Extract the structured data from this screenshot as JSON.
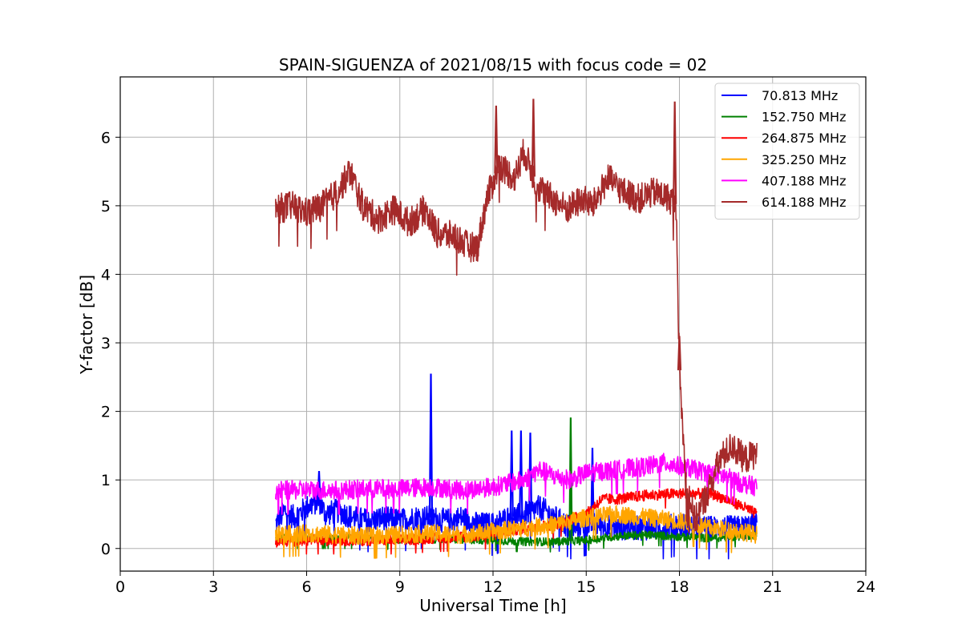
{
  "chart_data": {
    "type": "line",
    "title": "SPAIN-SIGUENZA of 2021/08/15 with focus code = 02",
    "xlabel": "Universal Time [h]",
    "ylabel": "Y-factor [dB]",
    "xlim": [
      0,
      24
    ],
    "ylim": [
      -0.33,
      6.88
    ],
    "xticks": [
      0,
      3,
      6,
      9,
      12,
      15,
      18,
      21,
      24
    ],
    "yticks": [
      0,
      1,
      2,
      3,
      4,
      5,
      6
    ],
    "grid": true,
    "legend_position": "top-right",
    "series": [
      {
        "name": " 70.813 MHz",
        "color": "#0000ff",
        "points": [
          [
            5.0,
            0.35
          ],
          [
            5.3,
            0.55
          ],
          [
            5.6,
            0.45
          ],
          [
            6.0,
            0.6
          ],
          [
            6.4,
            0.7
          ],
          [
            6.6,
            0.5
          ],
          [
            7.0,
            0.55
          ],
          [
            7.5,
            0.45
          ],
          [
            8.0,
            0.4
          ],
          [
            8.5,
            0.45
          ],
          [
            9.0,
            0.4
          ],
          [
            9.5,
            0.45
          ],
          [
            10.0,
            0.45
          ],
          [
            10.5,
            0.4
          ],
          [
            11.0,
            0.45
          ],
          [
            11.5,
            0.35
          ],
          [
            12.0,
            0.35
          ],
          [
            12.5,
            0.45
          ],
          [
            13.0,
            0.5
          ],
          [
            13.5,
            0.6
          ],
          [
            14.0,
            0.45
          ],
          [
            14.5,
            0.3
          ],
          [
            15.0,
            0.35
          ],
          [
            15.5,
            0.35
          ],
          [
            16.0,
            0.3
          ],
          [
            16.5,
            0.3
          ],
          [
            17.0,
            0.3
          ],
          [
            17.5,
            0.3
          ],
          [
            18.0,
            0.35
          ],
          [
            18.5,
            0.3
          ],
          [
            19.0,
            0.3
          ],
          [
            19.5,
            0.3
          ],
          [
            20.0,
            0.3
          ],
          [
            20.5,
            0.35
          ]
        ],
        "spikes": [
          [
            6.4,
            1.13
          ],
          [
            10.0,
            2.55
          ],
          [
            12.6,
            1.72
          ],
          [
            12.9,
            1.72
          ],
          [
            13.2,
            1.69
          ],
          [
            15.2,
            1.47
          ]
        ]
      },
      {
        "name": "152.750 MHz",
        "color": "#008000",
        "points": [
          [
            5.0,
            0.15
          ],
          [
            6.0,
            0.15
          ],
          [
            7.0,
            0.15
          ],
          [
            8.0,
            0.15
          ],
          [
            9.0,
            0.13
          ],
          [
            10.0,
            0.14
          ],
          [
            11.0,
            0.13
          ],
          [
            12.0,
            0.12
          ],
          [
            13.0,
            0.1
          ],
          [
            14.0,
            0.1
          ],
          [
            15.0,
            0.12
          ],
          [
            16.0,
            0.18
          ],
          [
            17.0,
            0.2
          ],
          [
            18.0,
            0.17
          ],
          [
            19.0,
            0.15
          ],
          [
            20.0,
            0.18
          ],
          [
            20.5,
            0.2
          ]
        ],
        "spikes": [
          [
            14.5,
            1.91
          ]
        ]
      },
      {
        "name": "264.875 MHz",
        "color": "#ff0000",
        "points": [
          [
            5.0,
            0.1
          ],
          [
            6.0,
            0.12
          ],
          [
            7.0,
            0.12
          ],
          [
            8.0,
            0.12
          ],
          [
            9.0,
            0.12
          ],
          [
            10.0,
            0.15
          ],
          [
            11.0,
            0.17
          ],
          [
            12.0,
            0.2
          ],
          [
            13.0,
            0.3
          ],
          [
            14.0,
            0.35
          ],
          [
            15.0,
            0.5
          ],
          [
            15.5,
            0.72
          ],
          [
            16.0,
            0.72
          ],
          [
            17.0,
            0.78
          ],
          [
            18.0,
            0.8
          ],
          [
            19.0,
            0.8
          ],
          [
            19.5,
            0.72
          ],
          [
            20.0,
            0.62
          ],
          [
            20.5,
            0.5
          ]
        ],
        "spikes": []
      },
      {
        "name": "325.250 MHz",
        "color": "#ffa500",
        "points": [
          [
            5.0,
            0.2
          ],
          [
            6.0,
            0.22
          ],
          [
            7.0,
            0.2
          ],
          [
            8.0,
            0.18
          ],
          [
            9.0,
            0.2
          ],
          [
            10.0,
            0.22
          ],
          [
            11.0,
            0.2
          ],
          [
            12.0,
            0.25
          ],
          [
            13.0,
            0.3
          ],
          [
            14.0,
            0.35
          ],
          [
            15.0,
            0.45
          ],
          [
            16.0,
            0.5
          ],
          [
            17.0,
            0.45
          ],
          [
            18.0,
            0.4
          ],
          [
            19.0,
            0.3
          ],
          [
            20.0,
            0.25
          ],
          [
            20.5,
            0.2
          ]
        ],
        "spikes": []
      },
      {
        "name": "407.188 MHz",
        "color": "#ff00ff",
        "points": [
          [
            5.0,
            0.85
          ],
          [
            6.0,
            0.85
          ],
          [
            7.0,
            0.85
          ],
          [
            8.0,
            0.87
          ],
          [
            9.0,
            0.87
          ],
          [
            10.0,
            0.9
          ],
          [
            11.0,
            0.85
          ],
          [
            12.0,
            0.9
          ],
          [
            12.5,
            0.95
          ],
          [
            13.0,
            1.0
          ],
          [
            13.5,
            1.15
          ],
          [
            14.0,
            1.05
          ],
          [
            14.5,
            1.0
          ],
          [
            15.0,
            1.1
          ],
          [
            16.0,
            1.15
          ],
          [
            17.0,
            1.2
          ],
          [
            17.5,
            1.25
          ],
          [
            18.0,
            1.2
          ],
          [
            18.5,
            1.15
          ],
          [
            19.0,
            1.1
          ],
          [
            19.5,
            1.05
          ],
          [
            20.0,
            0.95
          ],
          [
            20.5,
            0.9
          ]
        ],
        "spikes": []
      },
      {
        "name": "614.188 MHz",
        "color": "#a52a2a",
        "points": [
          [
            5.0,
            4.95
          ],
          [
            5.5,
            5.0
          ],
          [
            6.0,
            4.9
          ],
          [
            6.5,
            5.0
          ],
          [
            7.0,
            5.2
          ],
          [
            7.4,
            5.5
          ],
          [
            7.8,
            5.0
          ],
          [
            8.3,
            4.8
          ],
          [
            8.8,
            4.95
          ],
          [
            9.3,
            4.75
          ],
          [
            9.8,
            4.95
          ],
          [
            10.2,
            4.6
          ],
          [
            10.8,
            4.55
          ],
          [
            11.2,
            4.4
          ],
          [
            11.5,
            4.4
          ],
          [
            11.8,
            5.1
          ],
          [
            12.2,
            5.6
          ],
          [
            12.7,
            5.4
          ],
          [
            13.0,
            5.8
          ],
          [
            13.4,
            5.3
          ],
          [
            13.9,
            5.1
          ],
          [
            14.4,
            4.95
          ],
          [
            14.9,
            5.1
          ],
          [
            15.2,
            5.0
          ],
          [
            15.7,
            5.4
          ],
          [
            16.2,
            5.2
          ],
          [
            16.7,
            5.1
          ],
          [
            17.2,
            5.2
          ],
          [
            17.7,
            5.1
          ],
          [
            17.9,
            5.0
          ],
          [
            18.0,
            2.6
          ],
          [
            18.2,
            1.0
          ],
          [
            18.5,
            0.4
          ],
          [
            18.9,
            0.8
          ],
          [
            19.3,
            1.3
          ],
          [
            19.7,
            1.5
          ],
          [
            20.1,
            1.3
          ],
          [
            20.5,
            1.4
          ]
        ],
        "spikes": [
          [
            12.1,
            6.46
          ],
          [
            13.3,
            6.56
          ],
          [
            17.85,
            6.52
          ],
          [
            18.0,
            3.1
          ]
        ]
      }
    ]
  }
}
